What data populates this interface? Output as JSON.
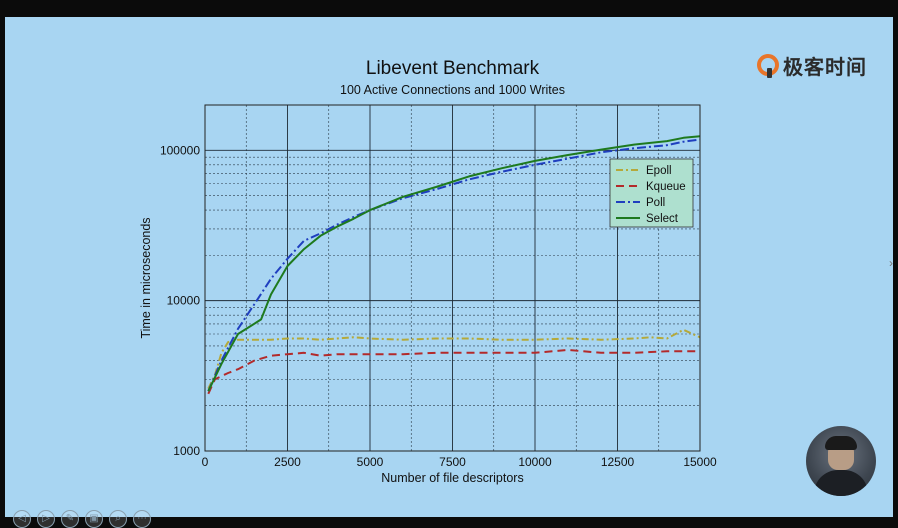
{
  "brand": {
    "name": "极客时间",
    "accent": "#e8752a"
  },
  "icons": {
    "controls": [
      "prev-icon",
      "next-icon",
      "pen-icon",
      "slides-icon",
      "zoom-icon",
      "more-icon"
    ],
    "controls_glyphs": [
      "◁",
      "▷",
      "✎",
      "▣",
      "⌕",
      "⋯"
    ]
  },
  "chart_data": {
    "type": "line",
    "title": "Libevent Benchmark",
    "subtitle": "100 Active Connections and 1000 Writes",
    "xlabel": "Number of file descriptors",
    "ylabel": "Time in microseconds",
    "xlim": [
      0,
      15000
    ],
    "ylim": [
      1000,
      200000
    ],
    "yscale": "log",
    "grid": true,
    "legend_position": "upper-right",
    "xticks": [
      0,
      2500,
      5000,
      7500,
      10000,
      12500,
      15000
    ],
    "xtick_labels": [
      "0",
      "2500",
      "5000",
      "7500",
      "10000",
      "12500",
      "15000"
    ],
    "yticks": [
      1000,
      10000,
      100000
    ],
    "ytick_labels": [
      "1000",
      "10000",
      "100000"
    ],
    "series": [
      {
        "name": "Epoll",
        "color": "#b5a93a",
        "dash": "7,3,2,3",
        "x": [
          100,
          300,
          500,
          700,
          1000,
          1500,
          2000,
          2500,
          3000,
          3500,
          4000,
          4500,
          5000,
          6000,
          7000,
          8000,
          9000,
          10000,
          11000,
          12000,
          13000,
          13500,
          14000,
          14500,
          15000
        ],
        "y": [
          2600,
          3200,
          4500,
          5300,
          5500,
          5500,
          5500,
          5600,
          5600,
          5500,
          5600,
          5700,
          5600,
          5500,
          5600,
          5600,
          5500,
          5500,
          5600,
          5500,
          5600,
          5700,
          5600,
          6400,
          5700
        ]
      },
      {
        "name": "Kqueue",
        "color": "#b32a2a",
        "dash": "8,5",
        "x": [
          100,
          300,
          700,
          1000,
          1500,
          2000,
          2500,
          3000,
          3500,
          4000,
          4500,
          5000,
          6000,
          7000,
          8000,
          9000,
          10000,
          11000,
          12000,
          13000,
          14000,
          15000
        ],
        "y": [
          2400,
          3000,
          3300,
          3500,
          4000,
          4300,
          4400,
          4500,
          4300,
          4400,
          4400,
          4400,
          4400,
          4500,
          4500,
          4500,
          4500,
          4700,
          4500,
          4500,
          4600,
          4600
        ]
      },
      {
        "name": "Poll",
        "color": "#1f3fbf",
        "dash": "9,3,2,3",
        "x": [
          100,
          500,
          1000,
          1500,
          2000,
          2500,
          3000,
          3500,
          4000,
          4500,
          5000,
          6000,
          7000,
          8000,
          9000,
          10000,
          11000,
          12000,
          13000,
          14000,
          14500,
          15000
        ],
        "y": [
          2500,
          4000,
          6500,
          9500,
          14000,
          19000,
          25000,
          28000,
          32000,
          36000,
          40000,
          48000,
          55000,
          64000,
          72000,
          80000,
          88000,
          97000,
          103000,
          108000,
          114000,
          118000
        ]
      },
      {
        "name": "Select",
        "color": "#1e7a1e",
        "dash": "",
        "x": [
          100,
          500,
          1000,
          1700,
          2000,
          2500,
          3000,
          3500,
          4000,
          4500,
          5000,
          6000,
          7000,
          8000,
          9000,
          10000,
          11000,
          12000,
          13000,
          14000,
          14500,
          15000
        ],
        "y": [
          2500,
          3800,
          6000,
          7500,
          11000,
          17000,
          22000,
          27000,
          31000,
          35000,
          40000,
          49000,
          57000,
          67000,
          76000,
          85000,
          93000,
          101000,
          109000,
          115000,
          121000,
          124000
        ]
      }
    ]
  }
}
